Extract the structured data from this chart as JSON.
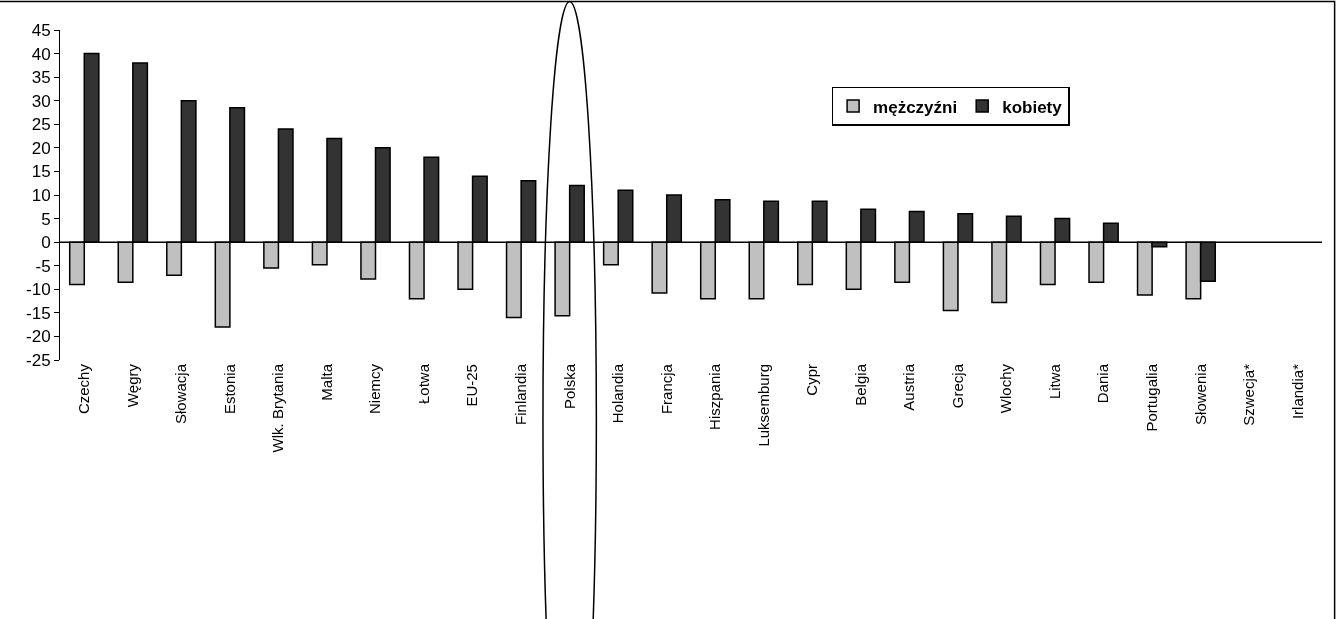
{
  "chart_data": {
    "type": "bar",
    "categories": [
      "Czechy",
      "Węgry",
      "Słowacja",
      "Estonia",
      "Wlk. Brytania",
      "Malta",
      "Niemcy",
      "Łotwa",
      "EU-25",
      "Finlandia",
      "Polska",
      "Holandia",
      "Francja",
      "Hiszpania",
      "Luksemburg",
      "Cypr",
      "Belgia",
      "Austria",
      "Grecja",
      "Wlochy",
      "Litwa",
      "Dania",
      "Portugalia",
      "Słowenia",
      "Szwecja*",
      "Irlandia*"
    ],
    "series": [
      {
        "name": "mężczyźni",
        "color": "#c0c0c0",
        "values": [
          -9,
          -8.5,
          -7,
          -18,
          -5.5,
          -4.8,
          -7.8,
          -12,
          -10,
          -16,
          -15.6,
          -4.8,
          -10.8,
          -12,
          -12,
          -9,
          -10,
          -8.5,
          -14.5,
          -12.8,
          -9,
          -8.5,
          -11.2,
          -12,
          null,
          null
        ]
      },
      {
        "name": "kobiety",
        "color": "#333333",
        "values": [
          40,
          38,
          30,
          28.5,
          24,
          22,
          20,
          18,
          14,
          13,
          12,
          11,
          10,
          9,
          8.7,
          8.7,
          7,
          6.5,
          6,
          5.5,
          5,
          4,
          -1,
          -8.3,
          null,
          null
        ]
      }
    ],
    "ylim": [
      -25,
      45
    ],
    "yticks": [
      -25,
      -20,
      -15,
      -10,
      -5,
      0,
      5,
      10,
      15,
      20,
      25,
      30,
      35,
      40,
      45
    ],
    "legend": "top right"
  }
}
